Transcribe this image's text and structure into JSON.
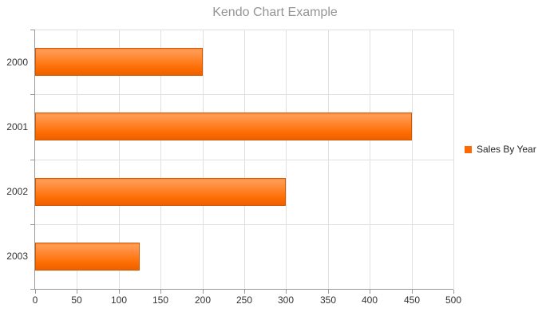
{
  "title": "Kendo Chart Example",
  "legend": {
    "position": "right",
    "items": [
      {
        "label": "Sales By Year",
        "color": "#ff6800"
      }
    ]
  },
  "chart_data": {
    "type": "bar",
    "orientation": "horizontal",
    "title": "Kendo Chart Example",
    "categories": [
      "2000",
      "2001",
      "2002",
      "2003"
    ],
    "series": [
      {
        "name": "Sales By Year",
        "color": "#ff6800",
        "values": [
          200,
          450,
          300,
          125
        ]
      }
    ],
    "value_axis": {
      "min": 0,
      "max": 500,
      "tick_step": 50,
      "tick_labels": [
        "0",
        "50",
        "100",
        "150",
        "200",
        "250",
        "300",
        "350",
        "400",
        "450",
        "500"
      ]
    },
    "grid": true,
    "legend_position": "right"
  },
  "colors": {
    "series_orange": "#ff6800",
    "bar_border": "#d25800",
    "title_text": "#949494",
    "axis_line": "#9a9a9a",
    "gridline": "#e0e0e0",
    "axis_label": "#333333",
    "legend_text": "#242424",
    "background": "#ffffff"
  }
}
